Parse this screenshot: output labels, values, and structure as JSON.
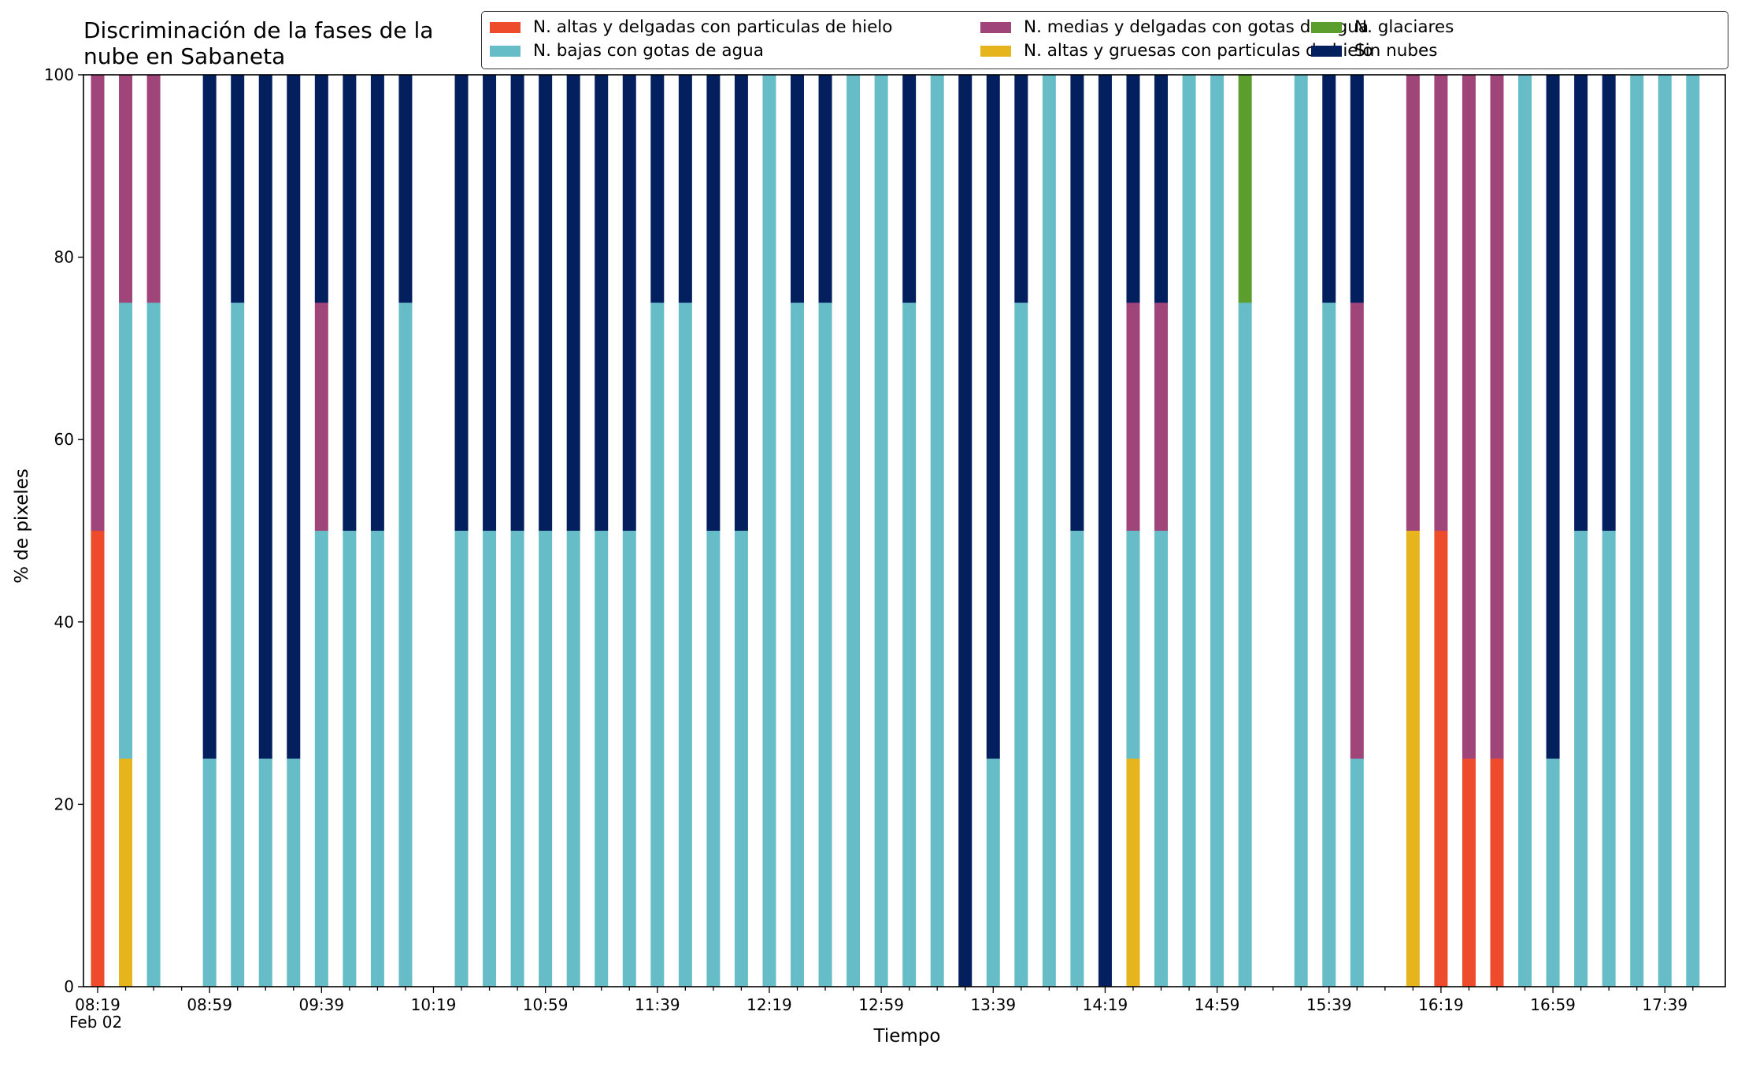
{
  "chart_data": {
    "type": "bar",
    "stacked": true,
    "title": [
      "Discriminación de la fases de la",
      "nube en Sabaneta"
    ],
    "xlabel": "Tiempo",
    "ylabel": "% de pixeles",
    "date_label": "Feb 02",
    "ylim": [
      0,
      100
    ],
    "yticks": [
      "0",
      "20",
      "40",
      "60",
      "80",
      "100"
    ],
    "xtick_labels": [
      "08:19",
      "08:59",
      "09:39",
      "10:19",
      "10:59",
      "11:39",
      "12:19",
      "12:59",
      "13:39",
      "14:19",
      "14:59",
      "15:39",
      "16:19",
      "16:59",
      "17:39"
    ],
    "legend_position": "top-right",
    "grid": false,
    "categories": [
      "08:19",
      "08:29",
      "08:39",
      "08:49",
      "08:59",
      "09:09",
      "09:19",
      "09:29",
      "09:39",
      "09:49",
      "09:59",
      "10:09",
      "10:19",
      "10:29",
      "10:39",
      "10:49",
      "10:59",
      "11:09",
      "11:19",
      "11:29",
      "11:39",
      "11:49",
      "11:59",
      "12:09",
      "12:19",
      "12:29",
      "12:39",
      "12:49",
      "12:59",
      "13:09",
      "13:19",
      "13:29",
      "13:39",
      "13:49",
      "13:59",
      "14:09",
      "14:19",
      "14:29",
      "14:39",
      "14:49",
      "14:59",
      "15:09",
      "15:19",
      "15:29",
      "15:39",
      "15:49",
      "15:59",
      "16:09",
      "16:19",
      "16:29",
      "16:39",
      "16:49",
      "16:59",
      "17:09",
      "17:19",
      "17:29",
      "17:39",
      "17:49"
    ],
    "series": [
      {
        "name": "N. altas y delgadas con particulas de hielo",
        "color": "#ee4a2c",
        "values": [
          50,
          0,
          0,
          0,
          0,
          0,
          0,
          0,
          0,
          0,
          0,
          0,
          0,
          0,
          0,
          0,
          0,
          0,
          0,
          0,
          0,
          0,
          0,
          0,
          0,
          0,
          0,
          0,
          0,
          0,
          0,
          0,
          0,
          0,
          0,
          0,
          0,
          0,
          0,
          0,
          0,
          0,
          0,
          0,
          0,
          0,
          0,
          0,
          50,
          25,
          25,
          0,
          0,
          0,
          0,
          0,
          0,
          0
        ]
      },
      {
        "name": "N. altas y gruesas con particulas de hielo",
        "color": "#e6b51e",
        "values": [
          0,
          25,
          0,
          0,
          0,
          0,
          0,
          0,
          0,
          0,
          0,
          0,
          0,
          0,
          0,
          0,
          0,
          0,
          0,
          0,
          0,
          0,
          0,
          0,
          0,
          0,
          0,
          0,
          0,
          0,
          0,
          0,
          0,
          0,
          0,
          0,
          0,
          25,
          0,
          0,
          0,
          0,
          0,
          0,
          0,
          0,
          0,
          50,
          0,
          0,
          0,
          0,
          0,
          0,
          0,
          0,
          0,
          0
        ]
      },
      {
        "name": "N. bajas con gotas de agua",
        "color": "#66bdc8",
        "values": [
          0,
          50,
          75,
          0,
          25,
          75,
          25,
          25,
          50,
          50,
          50,
          75,
          0,
          50,
          50,
          50,
          50,
          50,
          50,
          50,
          75,
          75,
          50,
          50,
          100,
          75,
          75,
          100,
          100,
          75,
          100,
          0,
          25,
          75,
          100,
          50,
          0,
          25,
          50,
          100,
          100,
          75,
          0,
          100,
          75,
          25,
          0,
          0,
          0,
          0,
          0,
          100,
          25,
          50,
          50,
          100,
          100,
          100
        ]
      },
      {
        "name": "N. glaciares",
        "color": "#5c9e2e",
        "values": [
          0,
          0,
          0,
          0,
          0,
          0,
          0,
          0,
          0,
          0,
          0,
          0,
          0,
          0,
          0,
          0,
          0,
          0,
          0,
          0,
          0,
          0,
          0,
          0,
          0,
          0,
          0,
          0,
          0,
          0,
          0,
          0,
          0,
          0,
          0,
          0,
          0,
          0,
          0,
          0,
          0,
          25,
          0,
          0,
          0,
          0,
          0,
          0,
          0,
          0,
          0,
          0,
          0,
          0,
          0,
          0,
          0,
          0
        ]
      },
      {
        "name": "N. medias y delgadas con gotas de agua",
        "color": "#a0457a",
        "values": [
          50,
          25,
          25,
          0,
          0,
          0,
          0,
          0,
          25,
          0,
          0,
          0,
          0,
          0,
          0,
          0,
          0,
          0,
          0,
          0,
          0,
          0,
          0,
          0,
          0,
          0,
          0,
          0,
          0,
          0,
          0,
          0,
          0,
          0,
          0,
          0,
          0,
          25,
          25,
          0,
          0,
          0,
          0,
          0,
          0,
          50,
          0,
          50,
          50,
          75,
          75,
          0,
          0,
          0,
          0,
          0,
          0,
          0
        ]
      },
      {
        "name": "Sin nubes",
        "color": "#041f5e",
        "values": [
          0,
          0,
          0,
          0,
          75,
          25,
          75,
          75,
          25,
          50,
          50,
          25,
          0,
          50,
          50,
          50,
          50,
          50,
          50,
          50,
          25,
          25,
          50,
          50,
          0,
          25,
          25,
          0,
          0,
          25,
          0,
          100,
          75,
          25,
          0,
          50,
          100,
          25,
          25,
          0,
          0,
          0,
          0,
          0,
          25,
          25,
          0,
          0,
          0,
          0,
          0,
          0,
          75,
          50,
          50,
          0,
          0,
          0
        ]
      }
    ],
    "legend_order": [
      0,
      2,
      4,
      1,
      3,
      5
    ]
  }
}
